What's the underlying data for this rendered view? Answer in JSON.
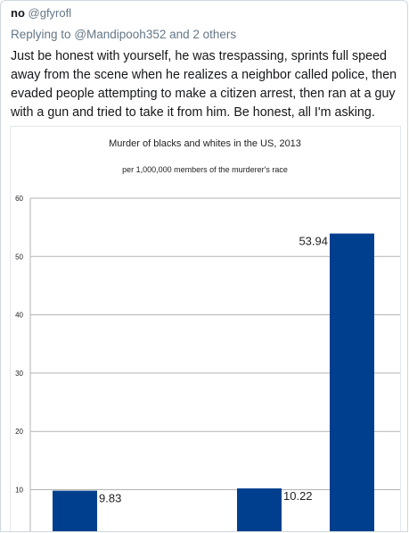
{
  "tweet": {
    "author": "no",
    "handle": "@gfyrofl",
    "replying_prefix": "Replying to",
    "replying_to": "@Mandipooh352",
    "replying_suffix": "and 2 others",
    "text": "Just be honest with yourself, he was trespassing, sprints full speed away from the scene when he realizes a neighbor called police, then evaded people attempting to make a citizen arrest, then ran at a guy with a gun and tried to take it from him.  Be honest, all I'm asking."
  },
  "chart_data": {
    "type": "bar",
    "title": "Murder of blacks and whites in the US, 2013",
    "subtitle": "per 1,000,000 members of the murderer's race",
    "ylim": [
      0,
      60
    ],
    "yticks": [
      10,
      20,
      30,
      40,
      50,
      60
    ],
    "grid": true,
    "bar_color": "#003f8e",
    "values": [
      9.83,
      10.22,
      53.94
    ],
    "data_labels": [
      "9.83",
      "10.22",
      "53.94"
    ]
  }
}
